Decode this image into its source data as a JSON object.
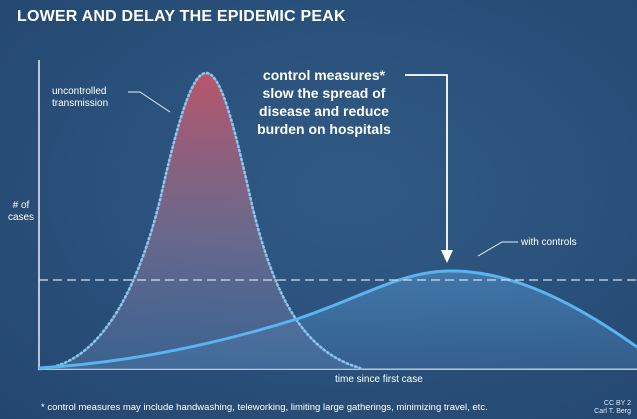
{
  "title": "LOWER AND DELAY THE EPIDEMIC PEAK",
  "axes": {
    "y_label_line1": "# of",
    "y_label_line2": "cases",
    "x_label": "time since first case"
  },
  "annotations": {
    "uncontrolled_line1": "uncontrolled",
    "uncontrolled_line2": "transmission",
    "with_controls": "with controls",
    "measures_line1": "control measures*",
    "measures_line2": "slow the spread of",
    "measures_line3": "disease and reduce",
    "measures_line4": "burden on hospitals"
  },
  "footnote": "* control measures may include handwashing, teleworking, limiting large gatherings, minimizing travel, etc.",
  "credit_line1": "CC BY 2",
  "credit_line2": "Carl T. Berg",
  "colors": {
    "background": "#2a4e75",
    "uncontrolled_fill_top": "#c0556a",
    "uncontrolled_outline": "#8cc4ec",
    "controlled_line": "#5ab4f0",
    "capacity_line": "#d8dee6"
  },
  "curves": {
    "uncontrolled": {
      "shape": "tall narrow peak",
      "line_style": "dotted"
    },
    "with_controls": {
      "shape": "low wide peak",
      "line_style": "solid"
    },
    "capacity_line_style": "dashed"
  }
}
